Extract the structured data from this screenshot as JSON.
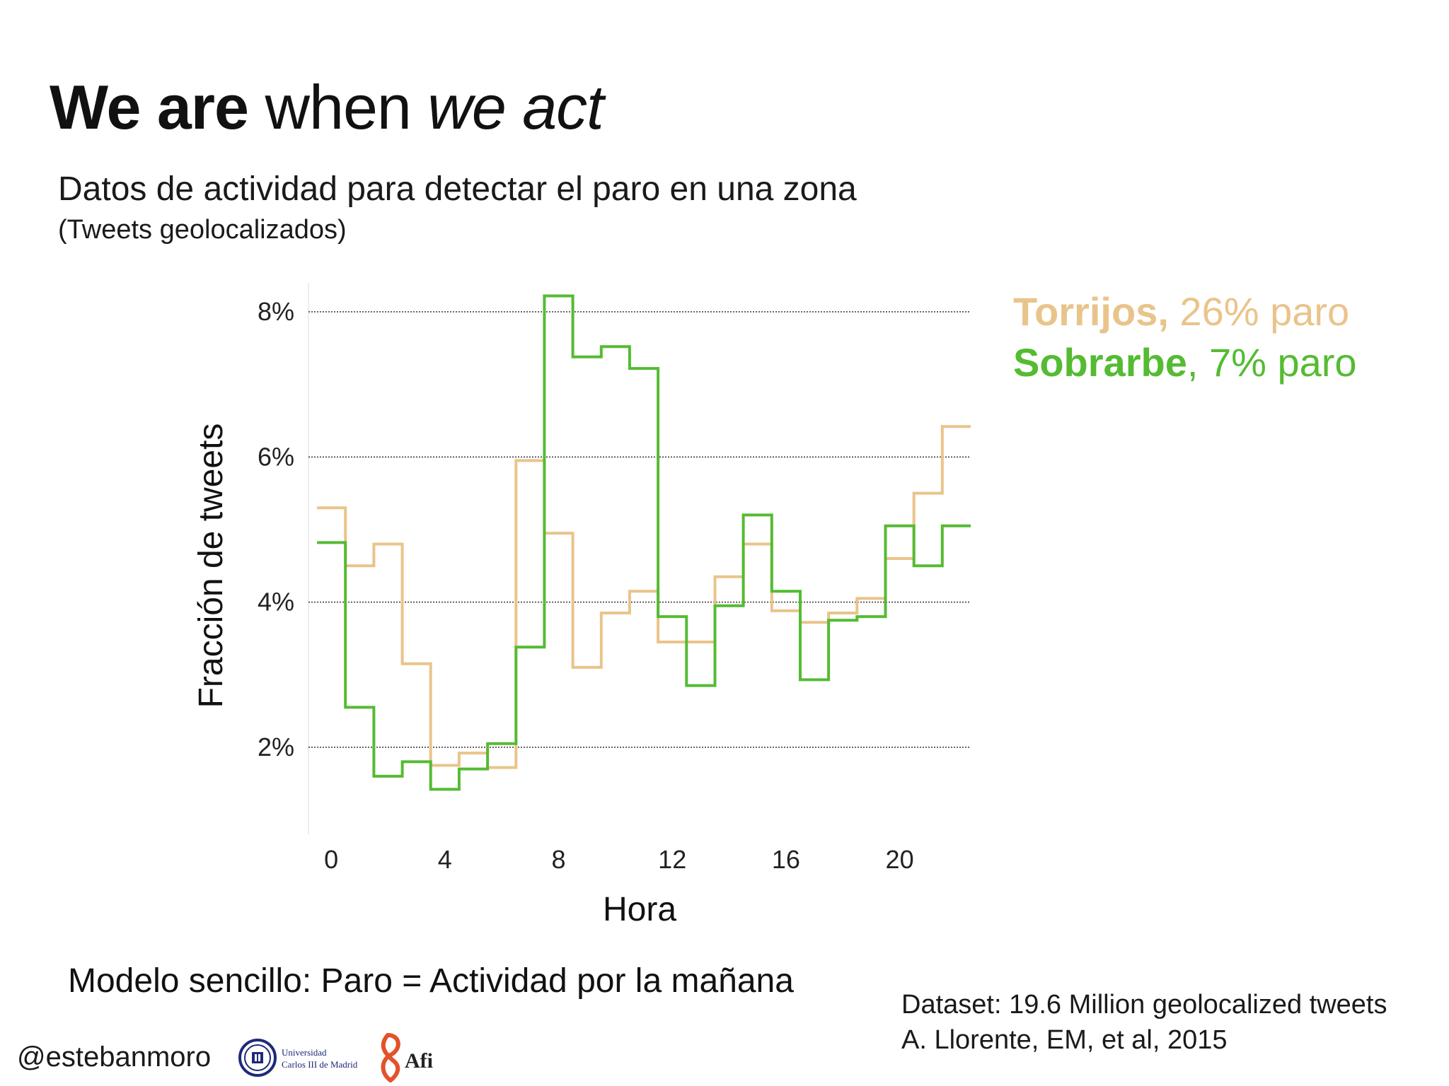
{
  "slide": {
    "title_bold": "We are",
    "title_regular": " when ",
    "title_italic": "we act",
    "subtitle": "Datos de actividad para detectar el paro en una zona",
    "subnote": "(Tweets geolocalizados)",
    "model_text": "Modelo sencillo: Paro = Actividad por la mañana",
    "dataset_line1": "Dataset: 19.6 Million geolocalized tweets",
    "dataset_line2": "A. Llorente, EM, et al, 2015",
    "handle": "@estebanmoro",
    "logo_uc3m_line1": "Universidad",
    "logo_uc3m_line2": "Carlos III de Madrid",
    "logo_afi": "Afi"
  },
  "legend": [
    {
      "name": "Torrijos,",
      "detail": " 26% paro",
      "color": "#E9C48A"
    },
    {
      "name": "Sobrarbe",
      "detail": ", 7% paro",
      "color": "#55BB33"
    }
  ],
  "chart_data": {
    "type": "line",
    "step": true,
    "xlabel": "Hora",
    "ylabel": "Fracción de tweets",
    "x_ticks": [
      0,
      4,
      8,
      12,
      16,
      20
    ],
    "y_ticks": [
      2,
      4,
      6,
      8
    ],
    "y_tick_labels": [
      "2%",
      "4%",
      "6%",
      "8%"
    ],
    "xlim": [
      -0.3,
      23
    ],
    "ylim": [
      0.8,
      8.4
    ],
    "grid": "horizontal dotted",
    "legend_position": "right",
    "x": [
      0,
      1,
      2,
      3,
      4,
      5,
      6,
      7,
      8,
      9,
      10,
      11,
      12,
      13,
      14,
      15,
      16,
      17,
      18,
      19,
      20,
      21,
      22
    ],
    "series": [
      {
        "name": "Torrijos",
        "color": "#E9C48A",
        "values": [
          5.3,
          4.5,
          4.8,
          3.15,
          1.75,
          1.92,
          1.72,
          5.95,
          4.95,
          3.1,
          3.85,
          4.15,
          3.45,
          3.45,
          4.35,
          4.8,
          3.88,
          3.72,
          3.85,
          4.05,
          4.6,
          5.5,
          6.42
        ]
      },
      {
        "name": "Sobrarbe",
        "color": "#55BB33",
        "values": [
          4.82,
          2.55,
          1.6,
          1.8,
          1.42,
          1.7,
          2.05,
          3.38,
          8.22,
          7.38,
          7.52,
          7.22,
          3.8,
          2.85,
          3.95,
          5.2,
          4.15,
          2.93,
          3.75,
          3.8,
          5.05,
          4.5,
          5.05
        ]
      }
    ]
  }
}
